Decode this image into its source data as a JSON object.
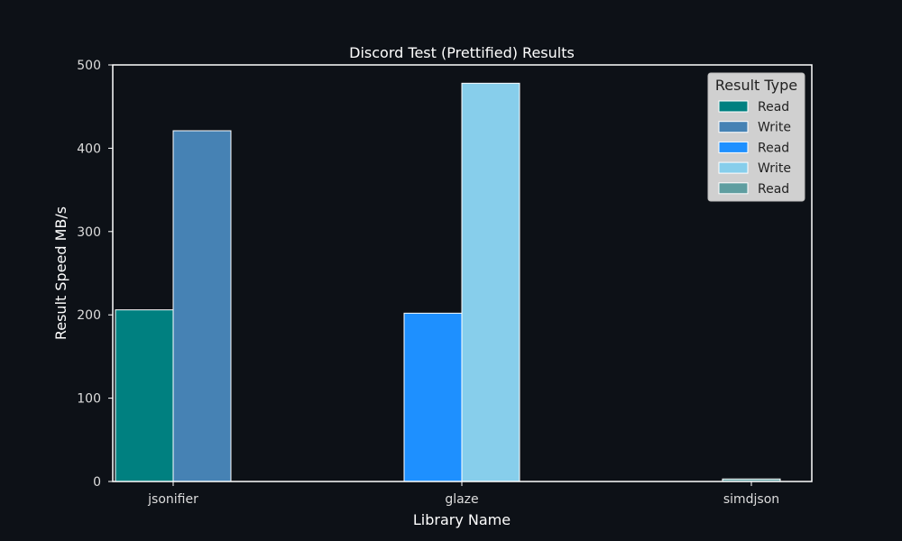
{
  "colors": {
    "background": "#0d1117",
    "axes": "#ffffff",
    "text": "#ffffff",
    "tick_text": "#dddddd",
    "legend_bg": "#d0d0d0",
    "legend_text": "#222222"
  },
  "chart_data": {
    "type": "bar",
    "title": "Discord Test (Prettified) Results",
    "xlabel": "Library Name",
    "ylabel": "Result Speed MB/s",
    "ylim": [
      0,
      500
    ],
    "yticks": [
      0,
      100,
      200,
      300,
      400,
      500
    ],
    "grid": false,
    "categories": [
      "jsonifier",
      "glaze",
      "simdjson"
    ],
    "bars": [
      {
        "category": "jsonifier",
        "type": "Read",
        "value": 206,
        "color": "#008080"
      },
      {
        "category": "jsonifier",
        "type": "Write",
        "value": 421,
        "color": "#4682b4"
      },
      {
        "category": "glaze",
        "type": "Read",
        "value": 202,
        "color": "#1e90ff"
      },
      {
        "category": "glaze",
        "type": "Write",
        "value": 478,
        "color": "#87ceeb"
      },
      {
        "category": "simdjson",
        "type": "Read",
        "value": 3,
        "color": "#5f9ea0"
      }
    ],
    "legend": {
      "title": "Result Type",
      "placement": "top-right",
      "entries": [
        {
          "label": "Read",
          "color": "#008080"
        },
        {
          "label": "Write",
          "color": "#4682b4"
        },
        {
          "label": "Read",
          "color": "#1e90ff"
        },
        {
          "label": "Write",
          "color": "#87ceeb"
        },
        {
          "label": "Read",
          "color": "#5f9ea0"
        }
      ]
    }
  }
}
